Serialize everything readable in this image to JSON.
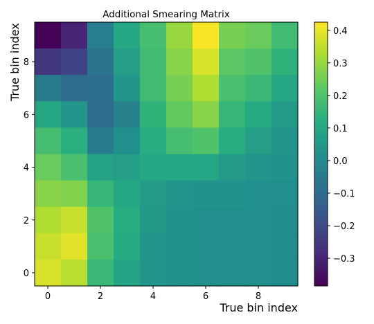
{
  "chart_data": {
    "type": "heatmap",
    "title": "Additional Smearing Matrix",
    "xlabel": "True bin index",
    "ylabel": "True bin index",
    "x_ticks": [
      "0",
      "2",
      "4",
      "6",
      "8"
    ],
    "y_ticks": [
      "0",
      "2",
      "4",
      "6",
      "8"
    ],
    "x_range": [
      -0.5,
      9.5
    ],
    "y_range": [
      -0.5,
      9.5
    ],
    "colorbar": {
      "colormap": "viridis",
      "vmin": -0.385,
      "vmax": 0.425,
      "ticks": [
        "−0.3",
        "−0.2",
        "−0.1",
        "0.0",
        "0.1",
        "0.2",
        "0.3",
        "0.4"
      ],
      "tick_values": [
        -0.3,
        -0.2,
        -0.1,
        0.0,
        0.1,
        0.2,
        0.3,
        0.4
      ]
    },
    "grid": false,
    "matrix_rows_top_to_bottom_y9_to_y0": [
      [
        -0.38,
        -0.3,
        -0.04,
        0.1,
        0.18,
        0.3,
        0.42,
        0.26,
        0.24,
        0.17
      ],
      [
        -0.25,
        -0.22,
        -0.07,
        0.07,
        0.17,
        0.28,
        0.38,
        0.22,
        0.2,
        0.14
      ],
      [
        -0.05,
        -0.1,
        -0.09,
        0.04,
        0.17,
        0.26,
        0.33,
        0.19,
        0.16,
        0.1
      ],
      [
        0.1,
        0.04,
        -0.1,
        -0.03,
        0.14,
        0.23,
        0.28,
        0.15,
        0.11,
        0.06
      ],
      [
        0.18,
        0.13,
        -0.05,
        0.02,
        0.12,
        0.18,
        0.2,
        0.12,
        0.07,
        0.04
      ],
      [
        0.24,
        0.19,
        0.08,
        0.07,
        0.1,
        0.1,
        0.1,
        0.06,
        0.04,
        0.03
      ],
      [
        0.28,
        0.27,
        0.15,
        0.1,
        0.06,
        0.04,
        0.03,
        0.03,
        0.02,
        0.02
      ],
      [
        0.33,
        0.36,
        0.2,
        0.12,
        0.05,
        0.03,
        0.02,
        0.02,
        0.02,
        0.01
      ],
      [
        0.36,
        0.39,
        0.19,
        0.11,
        0.04,
        0.03,
        0.02,
        0.02,
        0.02,
        0.01
      ],
      [
        0.38,
        0.34,
        0.16,
        0.09,
        0.04,
        0.03,
        0.02,
        0.02,
        0.02,
        0.01
      ]
    ]
  }
}
